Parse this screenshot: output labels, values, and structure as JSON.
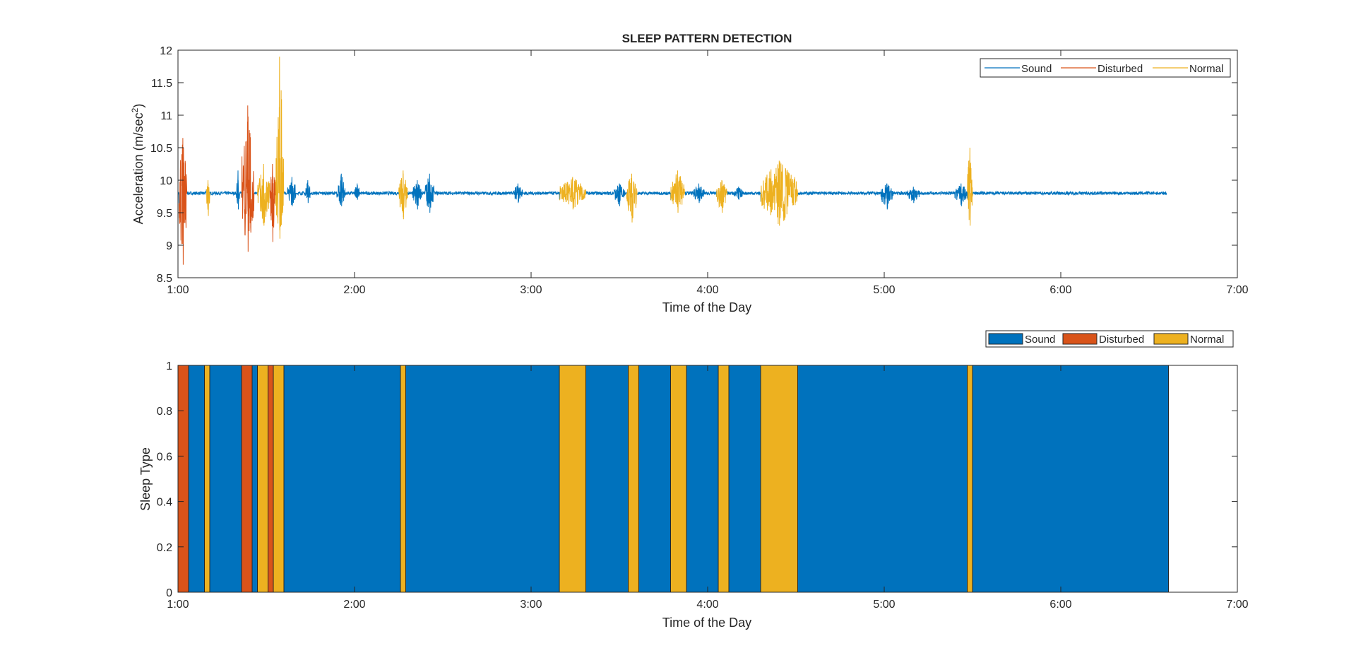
{
  "chart_data": [
    {
      "type": "line",
      "title": "SLEEP PATTERN DETECTION",
      "xlabel": "Time of the Day",
      "ylabel": "Acceleration (m/sec",
      "ylabel_sup": "2",
      "ylabel_close": ")",
      "xlim_hours": [
        1,
        7
      ],
      "ylim": [
        8.5,
        12
      ],
      "x_ticks": [
        "1:00",
        "2:00",
        "3:00",
        "4:00",
        "5:00",
        "6:00",
        "7:00"
      ],
      "y_ticks": [
        "8.5",
        "9",
        "9.5",
        "10",
        "10.5",
        "11",
        "11.5",
        "12"
      ],
      "grid": false,
      "legend_position": "top-right",
      "legend": [
        "Sound",
        "Disturbed",
        "Normal"
      ],
      "colors": {
        "Sound": "#0072BD",
        "Disturbed": "#D95319",
        "Normal": "#EDB120"
      },
      "baseline": 9.8,
      "end_hour": 6.6,
      "bursts": [
        {
          "start": 1.005,
          "end": 1.05,
          "type": "Disturbed",
          "max": 10.65,
          "min": 8.7
        },
        {
          "start": 1.16,
          "end": 1.18,
          "type": "Normal",
          "max": 10.0,
          "min": 9.45
        },
        {
          "start": 1.33,
          "end": 1.35,
          "type": "Sound",
          "max": 10.15,
          "min": 9.55
        },
        {
          "start": 1.36,
          "end": 1.43,
          "type": "Disturbed",
          "max": 11.15,
          "min": 8.9
        },
        {
          "start": 1.45,
          "end": 1.52,
          "type": "Normal",
          "max": 10.25,
          "min": 9.3
        },
        {
          "start": 1.52,
          "end": 1.55,
          "type": "Disturbed",
          "max": 10.25,
          "min": 9.05
        },
        {
          "start": 1.55,
          "end": 1.6,
          "type": "Normal",
          "max": 11.9,
          "min": 9.1
        },
        {
          "start": 1.62,
          "end": 1.67,
          "type": "Sound",
          "max": 10.05,
          "min": 9.6
        },
        {
          "start": 1.72,
          "end": 1.75,
          "type": "Sound",
          "max": 10.0,
          "min": 9.65
        },
        {
          "start": 1.9,
          "end": 1.95,
          "type": "Sound",
          "max": 10.1,
          "min": 9.6
        },
        {
          "start": 2.0,
          "end": 2.03,
          "type": "Sound",
          "max": 9.95,
          "min": 9.7
        },
        {
          "start": 2.25,
          "end": 2.3,
          "type": "Normal",
          "max": 10.15,
          "min": 9.4
        },
        {
          "start": 2.33,
          "end": 2.38,
          "type": "Sound",
          "max": 10.0,
          "min": 9.55
        },
        {
          "start": 2.4,
          "end": 2.45,
          "type": "Sound",
          "max": 10.1,
          "min": 9.5
        },
        {
          "start": 2.9,
          "end": 2.95,
          "type": "Sound",
          "max": 9.95,
          "min": 9.65
        },
        {
          "start": 3.16,
          "end": 3.31,
          "type": "Normal",
          "max": 10.05,
          "min": 9.55
        },
        {
          "start": 3.47,
          "end": 3.53,
          "type": "Sound",
          "max": 9.95,
          "min": 9.6
        },
        {
          "start": 3.54,
          "end": 3.6,
          "type": "Normal",
          "max": 10.1,
          "min": 9.35
        },
        {
          "start": 3.79,
          "end": 3.87,
          "type": "Normal",
          "max": 10.15,
          "min": 9.5
        },
        {
          "start": 3.92,
          "end": 3.98,
          "type": "Sound",
          "max": 9.95,
          "min": 9.65
        },
        {
          "start": 4.05,
          "end": 4.11,
          "type": "Normal",
          "max": 10.0,
          "min": 9.5
        },
        {
          "start": 4.15,
          "end": 4.2,
          "type": "Sound",
          "max": 9.9,
          "min": 9.7
        },
        {
          "start": 4.3,
          "end": 4.51,
          "type": "Normal",
          "max": 10.3,
          "min": 9.3
        },
        {
          "start": 4.98,
          "end": 5.05,
          "type": "Sound",
          "max": 9.95,
          "min": 9.55
        },
        {
          "start": 5.13,
          "end": 5.2,
          "type": "Sound",
          "max": 9.9,
          "min": 9.65
        },
        {
          "start": 5.4,
          "end": 5.47,
          "type": "Sound",
          "max": 9.95,
          "min": 9.6
        },
        {
          "start": 5.47,
          "end": 5.5,
          "type": "Normal",
          "max": 10.5,
          "min": 9.3
        }
      ]
    },
    {
      "type": "bar",
      "xlabel": "Time of the Day",
      "ylabel": "Sleep Type",
      "xlim_hours": [
        1,
        7
      ],
      "ylim": [
        0,
        1
      ],
      "x_ticks": [
        "1:00",
        "2:00",
        "3:00",
        "4:00",
        "5:00",
        "6:00",
        "7:00"
      ],
      "y_ticks": [
        "0",
        "0.2",
        "0.4",
        "0.6",
        "0.8",
        "1"
      ],
      "grid": false,
      "legend_position": "top-right, above axes",
      "legend": [
        "Sound",
        "Disturbed",
        "Normal"
      ],
      "colors": {
        "Sound": "#0072BD",
        "Disturbed": "#D95319",
        "Normal": "#EDB120"
      },
      "segments": [
        {
          "start": 1.0,
          "end": 1.06,
          "type": "Disturbed"
        },
        {
          "start": 1.06,
          "end": 1.15,
          "type": "Sound"
        },
        {
          "start": 1.15,
          "end": 1.18,
          "type": "Normal"
        },
        {
          "start": 1.18,
          "end": 1.36,
          "type": "Sound"
        },
        {
          "start": 1.36,
          "end": 1.42,
          "type": "Disturbed"
        },
        {
          "start": 1.42,
          "end": 1.45,
          "type": "Sound"
        },
        {
          "start": 1.45,
          "end": 1.51,
          "type": "Normal"
        },
        {
          "start": 1.51,
          "end": 1.54,
          "type": "Disturbed"
        },
        {
          "start": 1.54,
          "end": 1.6,
          "type": "Normal"
        },
        {
          "start": 1.6,
          "end": 2.26,
          "type": "Sound"
        },
        {
          "start": 2.26,
          "end": 2.29,
          "type": "Normal"
        },
        {
          "start": 2.29,
          "end": 3.16,
          "type": "Sound"
        },
        {
          "start": 3.16,
          "end": 3.31,
          "type": "Normal"
        },
        {
          "start": 3.31,
          "end": 3.55,
          "type": "Sound"
        },
        {
          "start": 3.55,
          "end": 3.61,
          "type": "Normal"
        },
        {
          "start": 3.61,
          "end": 3.79,
          "type": "Sound"
        },
        {
          "start": 3.79,
          "end": 3.88,
          "type": "Normal"
        },
        {
          "start": 3.88,
          "end": 4.06,
          "type": "Sound"
        },
        {
          "start": 4.06,
          "end": 4.12,
          "type": "Normal"
        },
        {
          "start": 4.12,
          "end": 4.3,
          "type": "Sound"
        },
        {
          "start": 4.3,
          "end": 4.51,
          "type": "Normal"
        },
        {
          "start": 4.51,
          "end": 5.47,
          "type": "Sound"
        },
        {
          "start": 5.47,
          "end": 5.5,
          "type": "Normal"
        },
        {
          "start": 5.5,
          "end": 6.61,
          "type": "Sound"
        }
      ]
    }
  ]
}
